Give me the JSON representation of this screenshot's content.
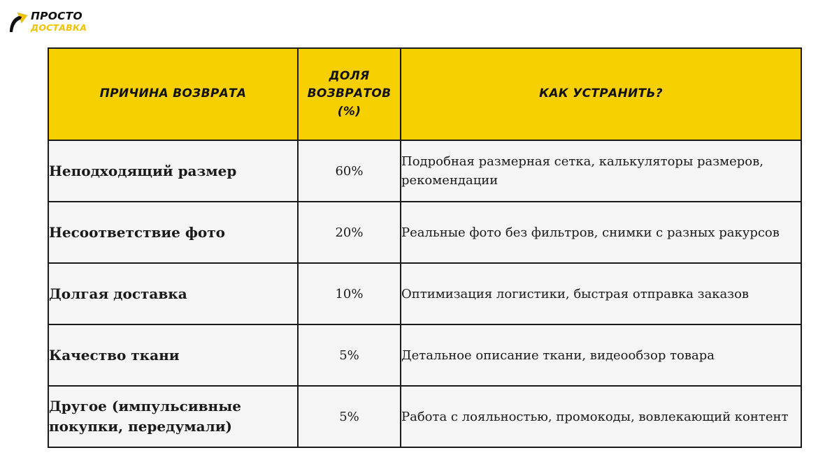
{
  "brand": {
    "line1": "ПРОСТО",
    "line2": "ДОСТАВКА",
    "icon": "arrow-logo-icon",
    "colors": {
      "dark": "#111111",
      "accent": "#f2c200"
    }
  },
  "table": {
    "headers": [
      "Причина возврата",
      "Доля возвратов (%)",
      "Как устранить?"
    ],
    "header_color": "#f6cf00",
    "rows": [
      {
        "reason": "Неподходящий размер",
        "share": "60%",
        "fix": "Подробная размерная сетка, калькуляторы размеров, рекомендации"
      },
      {
        "reason": "Несоответствие фото",
        "share": "20%",
        "fix": "Реальные фото без фильтров, снимки с разных ракурсов"
      },
      {
        "reason": "Долгая доставка",
        "share": "10%",
        "fix": "Оптимизация логистики, быстрая отправка заказов"
      },
      {
        "reason": "Качество ткани",
        "share": "5%",
        "fix": "Детальное описание ткани, видеообзор товара"
      },
      {
        "reason": "Другое (импульсивные покупки, передумали)",
        "share": "5%",
        "fix": "Работа с лояльностью, промокоды, вовлекающий контент"
      }
    ]
  }
}
